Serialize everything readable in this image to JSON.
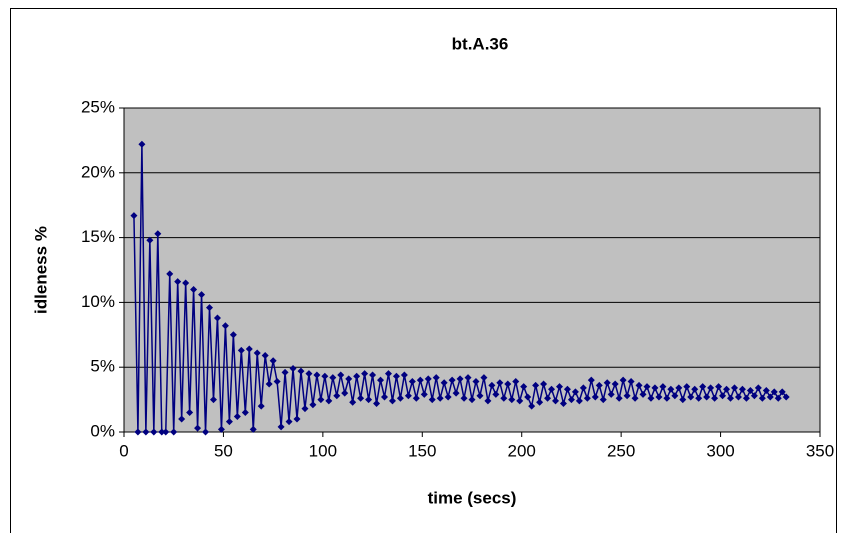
{
  "chart_data": {
    "type": "line",
    "title": "bt.A.36",
    "xlabel": "time (secs)",
    "ylabel": "idleness %",
    "x": [
      5,
      7,
      9,
      11,
      13,
      15,
      17,
      19,
      21,
      23,
      25,
      27,
      29,
      31,
      33,
      35,
      37,
      39,
      41,
      43,
      45,
      47,
      49,
      51,
      53,
      55,
      57,
      59,
      61,
      63,
      65,
      67,
      69,
      71,
      73,
      75,
      77,
      79,
      81,
      83,
      85,
      87,
      89,
      91,
      93,
      95,
      97,
      99,
      101,
      103,
      105,
      107,
      109,
      111,
      113,
      115,
      117,
      119,
      121,
      123,
      125,
      127,
      129,
      131,
      133,
      135,
      137,
      139,
      141,
      143,
      145,
      147,
      149,
      151,
      153,
      155,
      157,
      159,
      161,
      163,
      165,
      167,
      169,
      171,
      173,
      175,
      177,
      179,
      181,
      183,
      185,
      187,
      189,
      191,
      193,
      195,
      197,
      199,
      201,
      203,
      205,
      207,
      209,
      211,
      213,
      215,
      217,
      219,
      221,
      223,
      225,
      227,
      229,
      231,
      233,
      235,
      237,
      239,
      241,
      243,
      245,
      247,
      249,
      251,
      253,
      255,
      257,
      259,
      261,
      263,
      265,
      267,
      269,
      271,
      273,
      275,
      277,
      279,
      281,
      283,
      285,
      287,
      289,
      291,
      293,
      295,
      297,
      299,
      301,
      303,
      305,
      307,
      309,
      311,
      313,
      315,
      317,
      319,
      321,
      323,
      325,
      327,
      329,
      331,
      333
    ],
    "series": [
      {
        "name": "idleness",
        "color": "#000080",
        "values": [
          16.7,
          0,
          22.2,
          0,
          14.8,
          0,
          15.3,
          0,
          0,
          12.2,
          0,
          11.6,
          1.0,
          11.5,
          1.5,
          11.0,
          0.3,
          10.6,
          0,
          9.6,
          2.5,
          8.8,
          0.2,
          8.2,
          0.8,
          7.5,
          1.2,
          6.3,
          1.5,
          6.4,
          0.2,
          6.1,
          2.0,
          5.9,
          3.7,
          5.5,
          3.9,
          0.4,
          4.6,
          0.8,
          4.9,
          1.0,
          4.7,
          1.8,
          4.5,
          2.1,
          4.4,
          2.5,
          4.3,
          2.4,
          4.2,
          2.8,
          4.4,
          3.0,
          4.1,
          2.3,
          4.3,
          2.6,
          4.5,
          2.5,
          4.4,
          2.2,
          4.0,
          2.7,
          4.5,
          2.4,
          4.3,
          2.6,
          4.4,
          2.8,
          3.9,
          2.6,
          4.0,
          2.9,
          4.1,
          2.5,
          4.2,
          2.6,
          3.8,
          2.7,
          4.0,
          3.0,
          4.1,
          2.6,
          4.2,
          2.5,
          3.9,
          2.8,
          4.2,
          2.4,
          3.6,
          2.9,
          3.8,
          2.6,
          3.7,
          2.5,
          3.9,
          2.4,
          3.5,
          2.7,
          2.0,
          3.6,
          2.3,
          3.7,
          2.6,
          3.3,
          2.4,
          3.5,
          2.2,
          3.3,
          2.5,
          3.1,
          2.4,
          3.4,
          2.6,
          4.0,
          2.7,
          3.6,
          2.5,
          3.8,
          2.9,
          3.7,
          2.6,
          4.0,
          2.8,
          3.9,
          2.6,
          3.6,
          2.9,
          3.5,
          2.6,
          3.4,
          2.7,
          3.5,
          2.6,
          3.3,
          2.8,
          3.4,
          2.5,
          3.5,
          2.7,
          3.3,
          2.6,
          3.5,
          2.7,
          3.4,
          2.6,
          3.5,
          2.8,
          3.3,
          2.6,
          3.4,
          2.7,
          3.3,
          2.6,
          3.2,
          2.8,
          3.4,
          2.6,
          3.2,
          2.7,
          3.1,
          2.6,
          3.1,
          2.7
        ]
      }
    ],
    "xlim": [
      0,
      350
    ],
    "xticks": [
      0,
      50,
      100,
      150,
      200,
      250,
      300,
      350
    ],
    "ylim": [
      0,
      25
    ],
    "yticks": [
      {
        "value": 0,
        "label": "0%"
      },
      {
        "value": 5,
        "label": "5%"
      },
      {
        "value": 10,
        "label": "10%"
      },
      {
        "value": 15,
        "label": "15%"
      },
      {
        "value": 20,
        "label": "20%"
      },
      {
        "value": 25,
        "label": "25%"
      }
    ],
    "grid": true,
    "plot_background": "#c0c0c0"
  }
}
